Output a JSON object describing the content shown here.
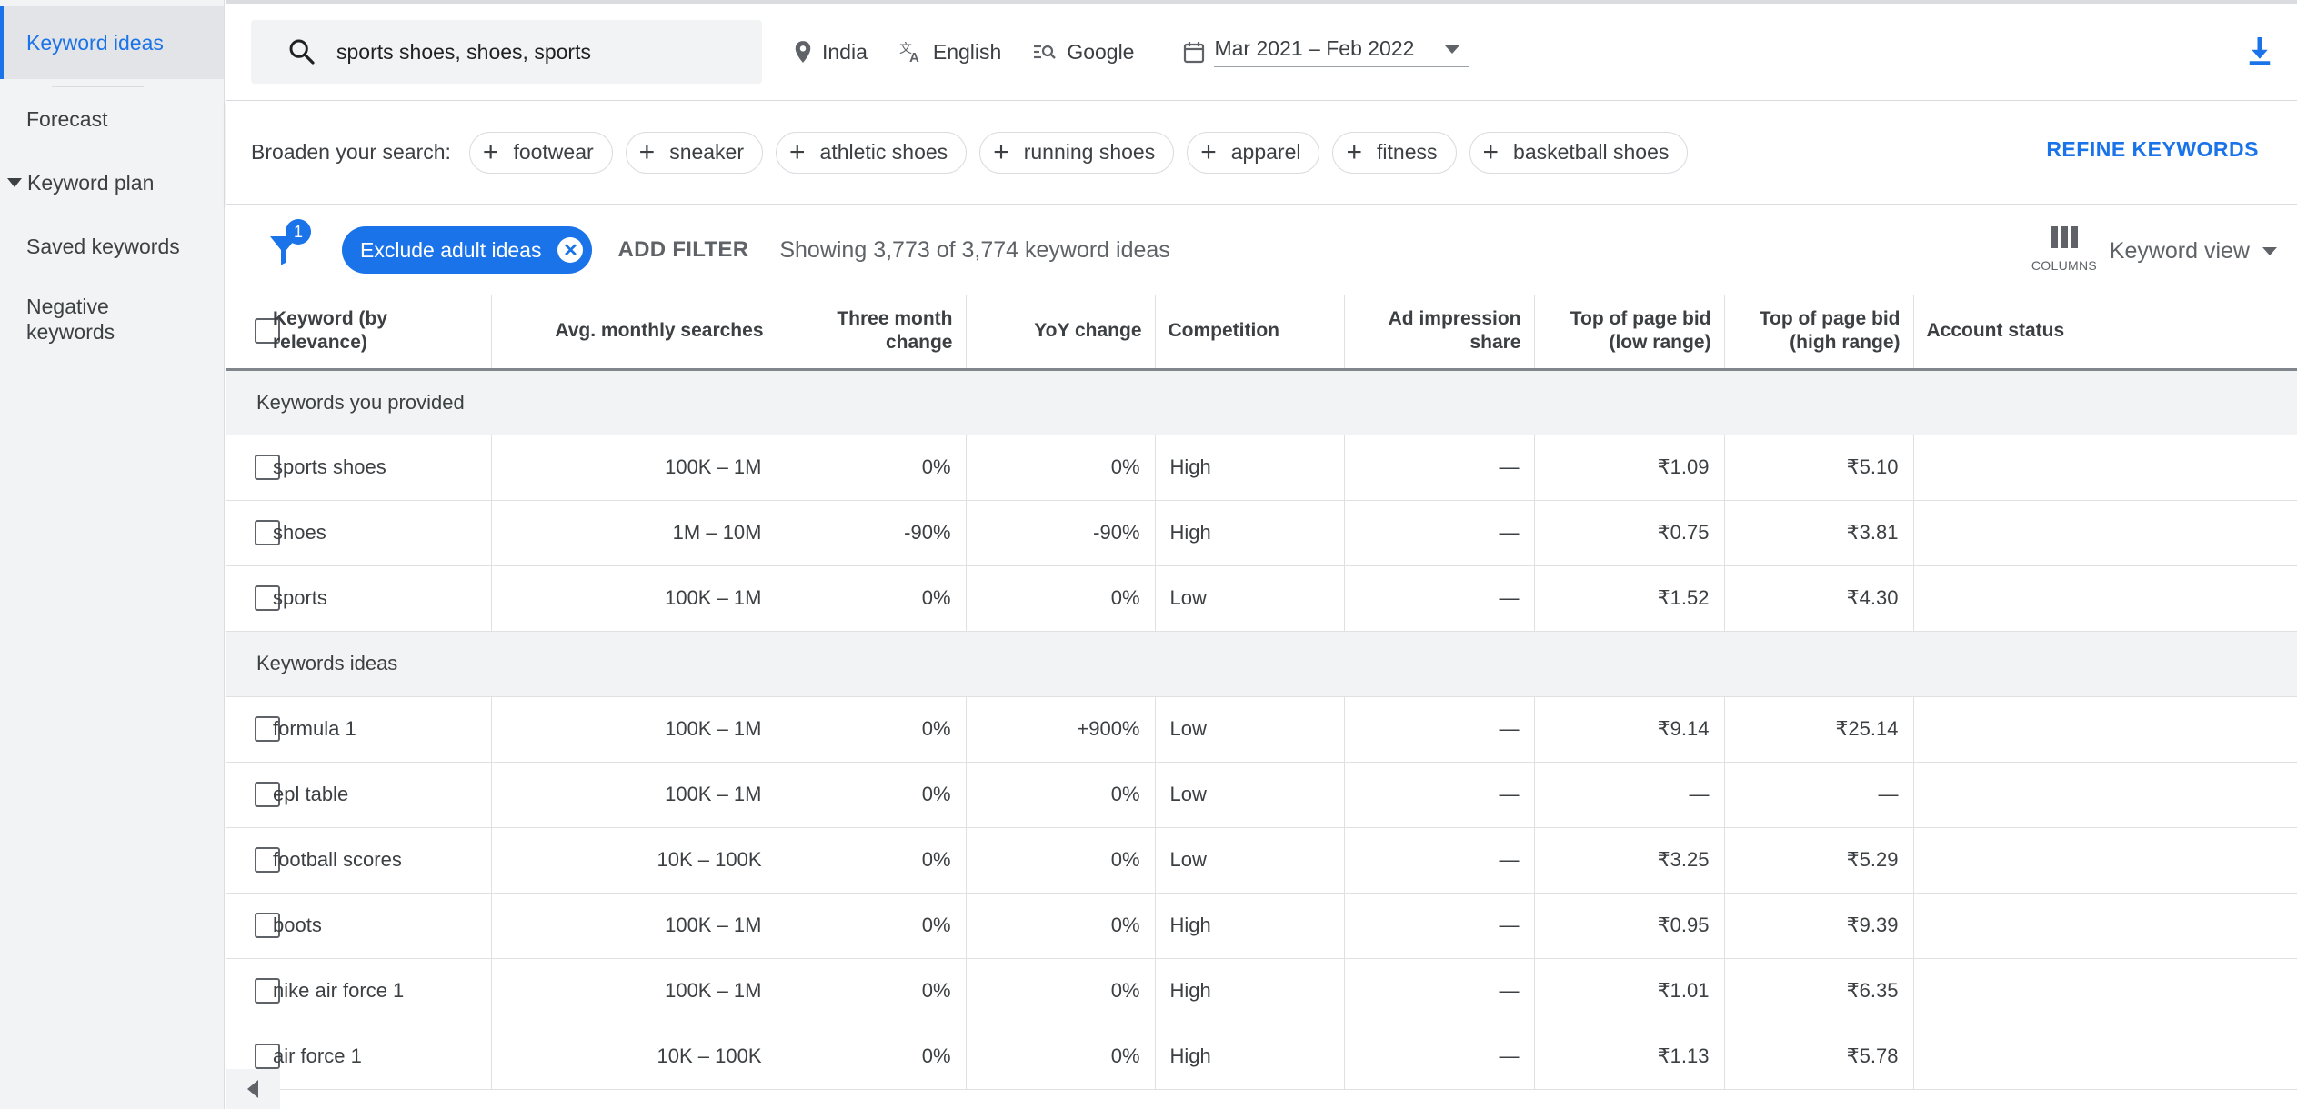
{
  "sidebar": {
    "items": [
      {
        "label": "Keyword ideas"
      },
      {
        "label": "Forecast"
      },
      {
        "label": "Keyword plan"
      },
      {
        "label": "Saved keywords"
      },
      {
        "label": "Negative keywords"
      }
    ]
  },
  "topbar": {
    "search_value": "sports shoes, shoes, sports",
    "location": "India",
    "language": "English",
    "network": "Google",
    "date_range": "Mar 2021 – Feb 2022"
  },
  "broaden": {
    "label": "Broaden your search:",
    "chips": [
      "footwear",
      "sneaker",
      "athletic shoes",
      "running shoes",
      "apparel",
      "fitness",
      "basketball shoes"
    ],
    "refine_label": "REFINE KEYWORDS"
  },
  "filters": {
    "badge_count": "1",
    "active_filter": "Exclude adult ideas",
    "add_filter_label": "ADD FILTER",
    "showing_text": "Showing 3,773 of 3,774 keyword ideas",
    "columns_label": "COLUMNS",
    "view_label": "Keyword view"
  },
  "table": {
    "headers": {
      "keyword": "Keyword (by relevance)",
      "avg_searches": "Avg. monthly searches",
      "three_month": "Three month change",
      "yoy": "YoY change",
      "competition": "Competition",
      "ad_share": "Ad impression share",
      "bid_low": "Top of page bid (low range)",
      "bid_high": "Top of page bid (high range)",
      "account_status": "Account status"
    },
    "group1_label": "Keywords you provided",
    "group2_label": "Keywords ideas",
    "provided": [
      {
        "keyword": "sports shoes",
        "searches": "100K – 1M",
        "three_month": "0%",
        "yoy": "0%",
        "competition": "High",
        "ad_share": "—",
        "bid_low": "₹1.09",
        "bid_high": "₹5.10"
      },
      {
        "keyword": "shoes",
        "searches": "1M – 10M",
        "three_month": "-90%",
        "yoy": "-90%",
        "competition": "High",
        "ad_share": "—",
        "bid_low": "₹0.75",
        "bid_high": "₹3.81"
      },
      {
        "keyword": "sports",
        "searches": "100K – 1M",
        "three_month": "0%",
        "yoy": "0%",
        "competition": "Low",
        "ad_share": "—",
        "bid_low": "₹1.52",
        "bid_high": "₹4.30"
      }
    ],
    "ideas": [
      {
        "keyword": "formula 1",
        "searches": "100K – 1M",
        "three_month": "0%",
        "yoy": "+900%",
        "competition": "Low",
        "ad_share": "—",
        "bid_low": "₹9.14",
        "bid_high": "₹25.14"
      },
      {
        "keyword": "epl table",
        "searches": "100K – 1M",
        "three_month": "0%",
        "yoy": "0%",
        "competition": "Low",
        "ad_share": "—",
        "bid_low": "—",
        "bid_high": "—"
      },
      {
        "keyword": "football scores",
        "searches": "10K – 100K",
        "three_month": "0%",
        "yoy": "0%",
        "competition": "Low",
        "ad_share": "—",
        "bid_low": "₹3.25",
        "bid_high": "₹5.29"
      },
      {
        "keyword": "boots",
        "searches": "100K – 1M",
        "three_month": "0%",
        "yoy": "0%",
        "competition": "High",
        "ad_share": "—",
        "bid_low": "₹0.95",
        "bid_high": "₹9.39"
      },
      {
        "keyword": "nike air force 1",
        "searches": "100K – 1M",
        "three_month": "0%",
        "yoy": "0%",
        "competition": "High",
        "ad_share": "—",
        "bid_low": "₹1.01",
        "bid_high": "₹6.35"
      },
      {
        "keyword": "air force 1",
        "searches": "10K – 100K",
        "three_month": "0%",
        "yoy": "0%",
        "competition": "High",
        "ad_share": "—",
        "bid_low": "₹1.13",
        "bid_high": "₹5.78"
      }
    ]
  },
  "colors": {
    "accent": "#1a73e8",
    "sidebar_bg": "#f1f3f4",
    "group_bg": "#f1f3f4"
  }
}
